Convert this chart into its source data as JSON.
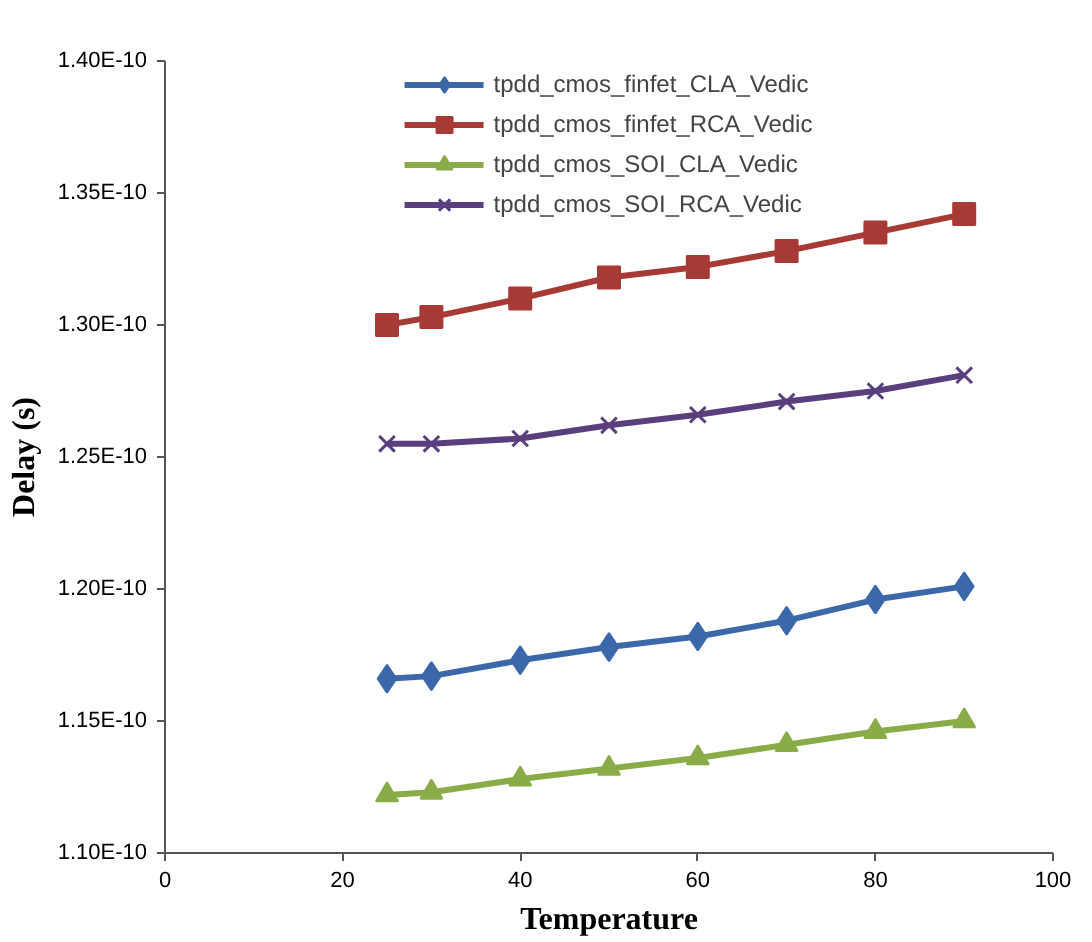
{
  "chart_data": {
    "type": "line",
    "xlabel": "Temperature",
    "ylabel": "Delay (s)",
    "x": [
      25,
      30,
      40,
      50,
      60,
      70,
      80,
      90
    ],
    "xlim": [
      0,
      100
    ],
    "xticks": [
      0,
      20,
      40,
      60,
      80,
      100
    ],
    "ylim": [
      1.1e-10,
      1.4e-10
    ],
    "yticks": [
      {
        "value": 1.1e-10,
        "label": "1.10E-10"
      },
      {
        "value": 1.15e-10,
        "label": "1.15E-10"
      },
      {
        "value": 1.2e-10,
        "label": "1.20E-10"
      },
      {
        "value": 1.25e-10,
        "label": "1.25E-10"
      },
      {
        "value": 1.3e-10,
        "label": "1.30E-10"
      },
      {
        "value": 1.35e-10,
        "label": "1.35E-10"
      },
      {
        "value": 1.4e-10,
        "label": "1.40E-10"
      }
    ],
    "grid": false,
    "legend": "top",
    "line_style": "solid",
    "series": [
      {
        "name": "tpdd_cmos_finfet_CLA_Vedic",
        "color": "#3a68a8",
        "marker": "diamond",
        "values": [
          1.166e-10,
          1.167e-10,
          1.173e-10,
          1.178e-10,
          1.182e-10,
          1.188e-10,
          1.196e-10,
          1.201e-10
        ]
      },
      {
        "name": "tpdd_cmos_finfet_RCA_Vedic",
        "color": "#a83a36",
        "marker": "square",
        "values": [
          1.3e-10,
          1.303e-10,
          1.31e-10,
          1.318e-10,
          1.322e-10,
          1.328e-10,
          1.335e-10,
          1.342e-10
        ]
      },
      {
        "name": "tpdd_cmos_SOI_CLA_Vedic",
        "color": "#8aac48",
        "marker": "triangle",
        "values": [
          1.122e-10,
          1.123e-10,
          1.128e-10,
          1.132e-10,
          1.136e-10,
          1.141e-10,
          1.146e-10,
          1.15e-10
        ]
      },
      {
        "name": "tpdd_cmos_SOI_RCA_Vedic",
        "color": "#5a3f7e",
        "marker": "cross",
        "values": [
          1.255e-10,
          1.255e-10,
          1.257e-10,
          1.262e-10,
          1.266e-10,
          1.271e-10,
          1.275e-10,
          1.281e-10
        ]
      }
    ]
  }
}
